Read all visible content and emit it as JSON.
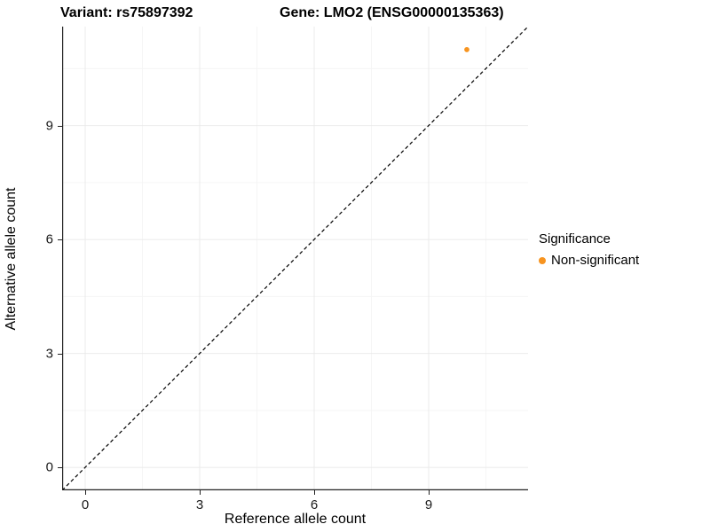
{
  "titles": {
    "variant": "Variant: rs75897392",
    "gene": "Gene: LMO2 (ENSG00000135363)"
  },
  "chart_data": {
    "type": "scatter",
    "title_left": "Variant: rs75897392",
    "title_right": "Gene: LMO2 (ENSG00000135363)",
    "xlabel": "Reference allele count",
    "ylabel": "Alternative allele count",
    "xlim": [
      -0.605,
      11.605
    ],
    "ylim": [
      -0.605,
      11.605
    ],
    "xticks": [
      0,
      3,
      6,
      9
    ],
    "yticks": [
      0,
      3,
      6,
      9
    ],
    "minor_ticks": [
      1.5,
      4.5,
      7.5,
      10.5
    ],
    "grid": "major+minor",
    "series": [
      {
        "name": "Non-significant",
        "color": "#F79420",
        "points": [
          {
            "x": 10,
            "y": 11
          }
        ]
      }
    ],
    "reference_line": {
      "type": "identity y=x",
      "style": "dashed",
      "color": "#000000"
    },
    "legend": {
      "title": "Significance",
      "position": "right",
      "items": [
        {
          "label": "Non-significant",
          "color": "#F79420"
        }
      ]
    }
  },
  "colors": {
    "background": "#ffffff",
    "grid_major": "#ebebeb",
    "grid_minor": "#f5f5f5",
    "axis_line": "#222222",
    "point_orange": "#F79420",
    "text": "#000000"
  }
}
